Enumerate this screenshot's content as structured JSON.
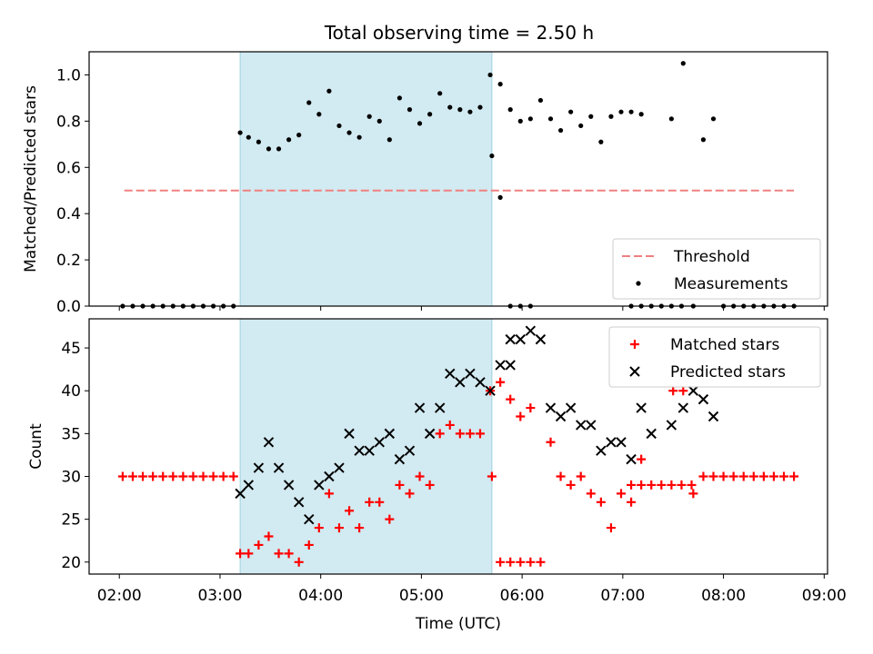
{
  "title": "Total observing time = 2.50 h",
  "colors": {
    "threshold": "#f08080",
    "measurement": "#000000",
    "matched": "#ff0000",
    "predicted": "#000000",
    "shade": "#add8e6"
  },
  "chart_data": [
    {
      "type": "scatter",
      "ylabel": "Matched/Predicted stars",
      "ylim": [
        0,
        1.1
      ],
      "yticks": [
        "0.0",
        "0.2",
        "0.4",
        "0.6",
        "0.8",
        "1.0"
      ],
      "xlim": [
        "01:42",
        "09:02"
      ],
      "shaded_interval": [
        "03:12",
        "05:42"
      ],
      "threshold": {
        "name": "Threshold",
        "value": 0.5,
        "x_range": [
          "02:03",
          "08:42"
        ]
      },
      "legend_position": "lower-right",
      "legend": [
        "Threshold",
        "Measurements"
      ],
      "series": [
        {
          "name": "Measurements",
          "marker": "dot",
          "points": [
            [
              "02:02",
              0
            ],
            [
              "02:08",
              0
            ],
            [
              "02:14",
              0
            ],
            [
              "02:20",
              0
            ],
            [
              "02:26",
              0
            ],
            [
              "02:32",
              0
            ],
            [
              "02:38",
              0
            ],
            [
              "02:44",
              0
            ],
            [
              "02:50",
              0
            ],
            [
              "02:56",
              0
            ],
            [
              "03:02",
              0
            ],
            [
              "03:08",
              0
            ],
            [
              "03:12",
              0.75
            ],
            [
              "03:17",
              0.73
            ],
            [
              "03:23",
              0.71
            ],
            [
              "03:29",
              0.68
            ],
            [
              "03:35",
              0.68
            ],
            [
              "03:41",
              0.72
            ],
            [
              "03:47",
              0.74
            ],
            [
              "03:53",
              0.88
            ],
            [
              "03:59",
              0.83
            ],
            [
              "04:05",
              0.93
            ],
            [
              "04:11",
              0.78
            ],
            [
              "04:17",
              0.75
            ],
            [
              "04:23",
              0.73
            ],
            [
              "04:29",
              0.82
            ],
            [
              "04:35",
              0.8
            ],
            [
              "04:41",
              0.72
            ],
            [
              "04:47",
              0.9
            ],
            [
              "04:53",
              0.85
            ],
            [
              "04:59",
              0.79
            ],
            [
              "05:05",
              0.83
            ],
            [
              "05:11",
              0.92
            ],
            [
              "05:17",
              0.86
            ],
            [
              "05:23",
              0.85
            ],
            [
              "05:29",
              0.84
            ],
            [
              "05:35",
              0.86
            ],
            [
              "05:41",
              1.0
            ],
            [
              "05:47",
              0.96
            ],
            [
              "05:53",
              0.85
            ],
            [
              "05:59",
              0.8
            ],
            [
              "06:05",
              0.81
            ],
            [
              "05:42",
              0.65
            ],
            [
              "05:47",
              0.47
            ],
            [
              "05:53",
              0
            ],
            [
              "05:59",
              0
            ],
            [
              "06:05",
              0
            ],
            [
              "06:11",
              0.89
            ],
            [
              "06:17",
              0.81
            ],
            [
              "06:23",
              0.76
            ],
            [
              "06:29",
              0.84
            ],
            [
              "06:35",
              0.78
            ],
            [
              "06:41",
              0.82
            ],
            [
              "06:47",
              0.71
            ],
            [
              "06:53",
              0.82
            ],
            [
              "06:59",
              0.84
            ],
            [
              "07:05",
              0.84
            ],
            [
              "07:11",
              0.83
            ],
            [
              "07:05",
              0
            ],
            [
              "07:11",
              0
            ],
            [
              "07:17",
              0
            ],
            [
              "07:23",
              0
            ],
            [
              "07:29",
              0
            ],
            [
              "07:35",
              0
            ],
            [
              "07:29",
              0.81
            ],
            [
              "07:36",
              1.05
            ],
            [
              "07:42",
              0
            ],
            [
              "07:48",
              0.72
            ],
            [
              "07:54",
              0.81
            ],
            [
              "08:00",
              0
            ],
            [
              "08:06",
              0
            ],
            [
              "08:12",
              0
            ],
            [
              "08:18",
              0
            ],
            [
              "08:24",
              0
            ],
            [
              "08:30",
              0
            ],
            [
              "08:36",
              0
            ],
            [
              "08:42",
              0
            ]
          ]
        }
      ]
    },
    {
      "type": "scatter",
      "xlabel": "Time (UTC)",
      "ylabel": "Count",
      "ylim": [
        18.6,
        48.4
      ],
      "yticks": [
        "20",
        "25",
        "30",
        "35",
        "40",
        "45"
      ],
      "xlim": [
        "01:42",
        "09:02"
      ],
      "xticks": [
        "02:00",
        "03:00",
        "04:00",
        "05:00",
        "06:00",
        "07:00",
        "08:00",
        "09:00"
      ],
      "shaded_interval": [
        "03:12",
        "05:42"
      ],
      "legend_position": "upper-right",
      "legend": [
        "Matched stars",
        "Predicted stars"
      ],
      "series": [
        {
          "name": "Matched stars",
          "marker": "plus",
          "points": [
            [
              "02:02",
              30
            ],
            [
              "02:08",
              30
            ],
            [
              "02:14",
              30
            ],
            [
              "02:20",
              30
            ],
            [
              "02:26",
              30
            ],
            [
              "02:32",
              30
            ],
            [
              "02:38",
              30
            ],
            [
              "02:44",
              30
            ],
            [
              "02:50",
              30
            ],
            [
              "02:56",
              30
            ],
            [
              "03:02",
              30
            ],
            [
              "03:08",
              30
            ],
            [
              "03:12",
              21
            ],
            [
              "03:17",
              21
            ],
            [
              "03:23",
              22
            ],
            [
              "03:29",
              23
            ],
            [
              "03:35",
              21
            ],
            [
              "03:41",
              21
            ],
            [
              "03:47",
              20
            ],
            [
              "03:53",
              22
            ],
            [
              "03:59",
              24
            ],
            [
              "04:05",
              28
            ],
            [
              "04:11",
              24
            ],
            [
              "04:17",
              26
            ],
            [
              "04:23",
              24
            ],
            [
              "04:29",
              27
            ],
            [
              "04:35",
              27
            ],
            [
              "04:41",
              25
            ],
            [
              "04:47",
              29
            ],
            [
              "04:53",
              28
            ],
            [
              "04:59",
              30
            ],
            [
              "05:05",
              29
            ],
            [
              "05:11",
              35
            ],
            [
              "05:17",
              36
            ],
            [
              "05:23",
              35
            ],
            [
              "05:29",
              35
            ],
            [
              "05:35",
              35
            ],
            [
              "05:41",
              40
            ],
            [
              "05:47",
              41
            ],
            [
              "05:53",
              39
            ],
            [
              "05:59",
              37
            ],
            [
              "06:05",
              38
            ],
            [
              "05:42",
              30
            ],
            [
              "05:47",
              20
            ],
            [
              "05:53",
              20
            ],
            [
              "05:59",
              20
            ],
            [
              "06:05",
              20
            ],
            [
              "06:11",
              20
            ],
            [
              "06:17",
              34
            ],
            [
              "06:23",
              30
            ],
            [
              "06:29",
              29
            ],
            [
              "06:35",
              30
            ],
            [
              "06:41",
              28
            ],
            [
              "06:47",
              27
            ],
            [
              "06:53",
              24
            ],
            [
              "06:59",
              28
            ],
            [
              "07:05",
              27
            ],
            [
              "07:11",
              32
            ],
            [
              "07:05",
              29
            ],
            [
              "07:11",
              29
            ],
            [
              "07:17",
              29
            ],
            [
              "07:23",
              29
            ],
            [
              "07:29",
              29
            ],
            [
              "07:35",
              29
            ],
            [
              "07:41",
              29
            ],
            [
              "07:30",
              40
            ],
            [
              "07:36",
              40
            ],
            [
              "07:42",
              28
            ],
            [
              "07:48",
              30
            ],
            [
              "07:54",
              30
            ],
            [
              "08:00",
              30
            ],
            [
              "08:06",
              30
            ],
            [
              "08:12",
              30
            ],
            [
              "08:18",
              30
            ],
            [
              "08:24",
              30
            ],
            [
              "08:30",
              30
            ],
            [
              "08:36",
              30
            ],
            [
              "08:42",
              30
            ]
          ]
        },
        {
          "name": "Predicted stars",
          "marker": "x",
          "points": [
            [
              "03:12",
              28
            ],
            [
              "03:17",
              29
            ],
            [
              "03:23",
              31
            ],
            [
              "03:29",
              34
            ],
            [
              "03:35",
              31
            ],
            [
              "03:41",
              29
            ],
            [
              "03:47",
              27
            ],
            [
              "03:53",
              25
            ],
            [
              "03:59",
              29
            ],
            [
              "04:05",
              30
            ],
            [
              "04:11",
              31
            ],
            [
              "04:17",
              35
            ],
            [
              "04:23",
              33
            ],
            [
              "04:29",
              33
            ],
            [
              "04:35",
              34
            ],
            [
              "04:41",
              35
            ],
            [
              "04:47",
              32
            ],
            [
              "04:53",
              33
            ],
            [
              "04:59",
              38
            ],
            [
              "05:05",
              35
            ],
            [
              "05:11",
              38
            ],
            [
              "05:17",
              42
            ],
            [
              "05:23",
              41
            ],
            [
              "05:29",
              42
            ],
            [
              "05:35",
              41
            ],
            [
              "05:41",
              40
            ],
            [
              "05:47",
              43
            ],
            [
              "05:53",
              46
            ],
            [
              "05:59",
              46
            ],
            [
              "06:05",
              47
            ],
            [
              "06:11",
              46
            ],
            [
              "05:53",
              43
            ],
            [
              "06:17",
              38
            ],
            [
              "06:23",
              37
            ],
            [
              "06:29",
              38
            ],
            [
              "06:35",
              36
            ],
            [
              "06:41",
              36
            ],
            [
              "06:47",
              33
            ],
            [
              "06:53",
              34
            ],
            [
              "06:59",
              34
            ],
            [
              "07:05",
              32
            ],
            [
              "07:11",
              38
            ],
            [
              "07:17",
              35
            ],
            [
              "07:29",
              36
            ],
            [
              "07:36",
              38
            ],
            [
              "07:42",
              40
            ],
            [
              "07:48",
              39
            ],
            [
              "07:54",
              37
            ]
          ]
        }
      ]
    }
  ]
}
